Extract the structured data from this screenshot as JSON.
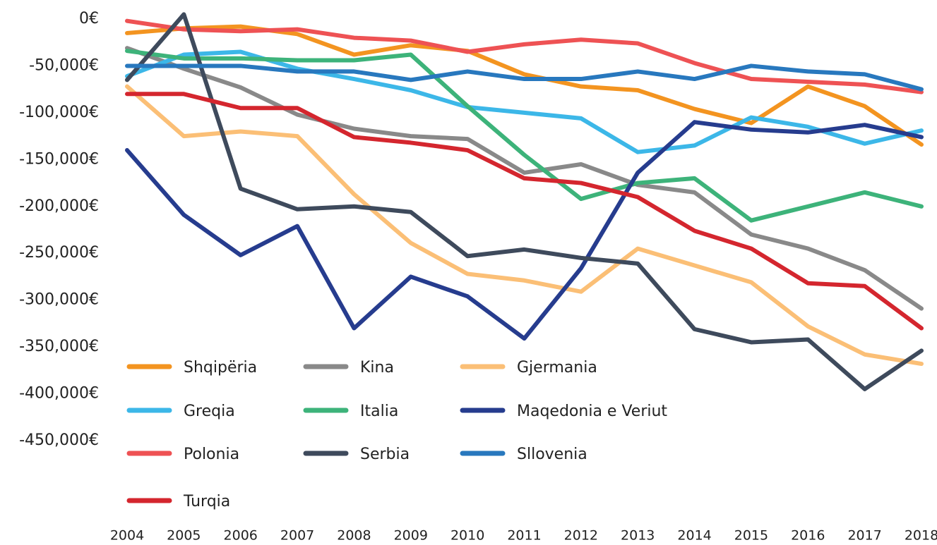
{
  "chart_data": {
    "type": "line",
    "categories": [
      "2004",
      "2005",
      "2006",
      "2007",
      "2008",
      "2009",
      "2010",
      "2011",
      "2012",
      "2013",
      "2014",
      "2015",
      "2016",
      "2017",
      "2018"
    ],
    "ylim": [
      -450000,
      0
    ],
    "yticks": [
      {
        "value": 0,
        "label": "0€"
      },
      {
        "value": -50000,
        "label": "-50,000€"
      },
      {
        "value": -100000,
        "label": "-100,000€"
      },
      {
        "value": -150000,
        "label": "-150,000€"
      },
      {
        "value": -200000,
        "label": "-200,000€"
      },
      {
        "value": -250000,
        "label": "-250,000€"
      },
      {
        "value": -300000,
        "label": "-300,000€"
      },
      {
        "value": -350000,
        "label": "-350,000€"
      },
      {
        "value": -400000,
        "label": "-400,000€"
      },
      {
        "value": -450000,
        "label": "-450,000€"
      }
    ],
    "grid": false,
    "series": [
      {
        "name": "Shqipëria",
        "color": "#f39420",
        "values": [
          -15000,
          -10000,
          -8000,
          -16000,
          -38000,
          -28000,
          -34000,
          -59000,
          -72000,
          -76000,
          -96000,
          -111000,
          -72000,
          -93000,
          -134000
        ]
      },
      {
        "name": "Kina",
        "color": "#898989",
        "values": [
          -31000,
          -53000,
          -73000,
          -102000,
          -117000,
          -125000,
          -128000,
          -164000,
          -155000,
          -177000,
          -185000,
          -230000,
          -245000,
          -268000,
          -309000
        ]
      },
      {
        "name": "Gjermania",
        "color": "#fbbf76",
        "values": [
          -72000,
          -125000,
          -120000,
          -125000,
          -187000,
          -239000,
          -272000,
          -279000,
          -291000,
          -245000,
          -263000,
          -281000,
          -328000,
          -358000,
          -368000
        ]
      },
      {
        "name": "Greqia",
        "color": "#3cb7e8",
        "values": [
          -61000,
          -38000,
          -35000,
          -53000,
          -64000,
          -76000,
          -94000,
          -100000,
          -106000,
          -142000,
          -135000,
          -105000,
          -115000,
          -133000,
          -119000
        ]
      },
      {
        "name": "Italia",
        "color": "#3db37a",
        "values": [
          -34000,
          -42000,
          -42000,
          -44000,
          -44000,
          -38000,
          -93000,
          -145000,
          -192000,
          -175000,
          -170000,
          -215000,
          -200000,
          -185000,
          -200000
        ]
      },
      {
        "name": "Maqedonia e Veriut",
        "color": "#263c8e",
        "values": [
          -140000,
          -209000,
          -252000,
          -221000,
          -330000,
          -275000,
          -296000,
          -341000,
          -266000,
          -164000,
          -110000,
          -118000,
          -121000,
          -113000,
          -126000
        ]
      },
      {
        "name": "Polonia",
        "color": "#ee5254",
        "values": [
          -2000,
          -11000,
          -13000,
          -11000,
          -20000,
          -23000,
          -35000,
          -27000,
          -22000,
          -26000,
          -47000,
          -64000,
          -67000,
          -70000,
          -78000
        ]
      },
      {
        "name": "Serbia",
        "color": "#3e4a5c",
        "values": [
          -65000,
          5000,
          -181000,
          -203000,
          -200000,
          -206000,
          -253000,
          -246000,
          -255000,
          -261000,
          -331000,
          -345000,
          -342000,
          -395000,
          -354000
        ]
      },
      {
        "name": "Sllovenia",
        "color": "#2878be",
        "values": [
          -50000,
          -50000,
          -50000,
          -56000,
          -56000,
          -65000,
          -56000,
          -64000,
          -64000,
          -56000,
          -64000,
          -50000,
          -56000,
          -59000,
          -75000
        ]
      },
      {
        "name": "Turqia",
        "color": "#d4262e",
        "values": [
          -80000,
          -80000,
          -95000,
          -95000,
          -126000,
          -132000,
          -140000,
          -170000,
          -175000,
          -190000,
          -226000,
          -245000,
          -282000,
          -285000,
          -330000
        ]
      }
    ]
  }
}
